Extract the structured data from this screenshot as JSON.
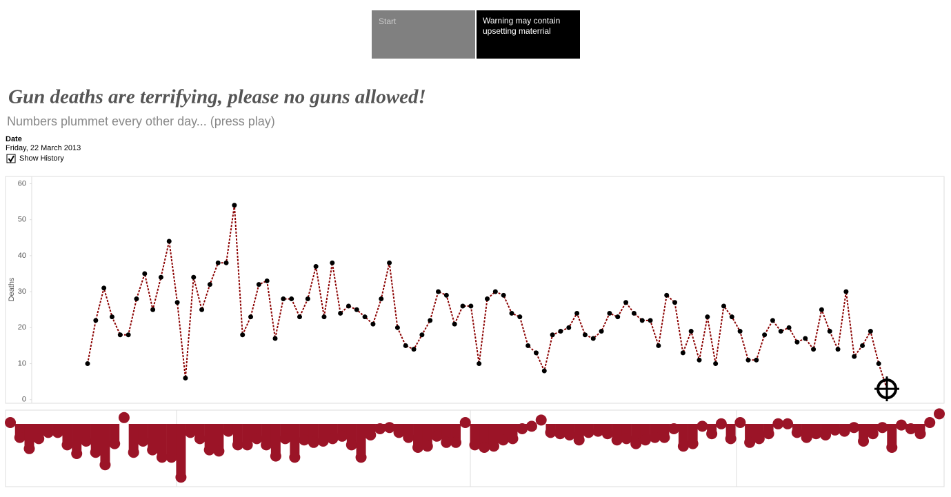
{
  "header": {
    "buttons": [
      "Start",
      "Warning may contain upsetting materrial"
    ]
  },
  "filter": {
    "label": "Date",
    "value": "Friday, 22 March 2013",
    "checkbox": "Show History",
    "checked": true
  },
  "chart_data": {
    "type": "line",
    "title": "Gun deaths are terrifying, please no guns allowed!",
    "subtitle": "Numbers plummet every other day... (press play)",
    "ylabel": "Deaths",
    "color": "#8b0000",
    "marker_color": "#000000",
    "strip_color": "#9b1427",
    "ylim": [
      -1,
      62
    ],
    "yticks": [
      0,
      10,
      20,
      30,
      40,
      50,
      60
    ],
    "values": [
      10,
      22,
      31,
      23,
      18,
      18,
      28,
      35,
      25,
      34,
      44,
      27,
      6,
      34,
      25,
      32,
      38,
      38,
      54,
      18,
      23,
      32,
      33,
      17,
      28,
      28,
      23,
      28,
      37,
      23,
      38,
      24,
      26,
      25,
      23,
      21,
      28,
      38,
      20,
      15,
      14,
      18,
      22,
      30,
      29,
      21,
      26,
      26,
      10,
      28,
      30,
      29,
      24,
      23,
      15,
      13,
      8,
      18,
      19,
      20,
      24,
      18,
      17,
      19,
      24,
      23,
      27,
      24,
      22,
      22,
      15,
      29,
      27,
      13,
      19,
      11,
      23,
      10,
      26,
      23,
      19,
      11,
      11,
      18,
      22,
      19,
      20,
      16,
      17,
      14,
      25,
      19,
      14,
      30,
      12,
      15,
      19,
      10,
      3
    ]
  }
}
